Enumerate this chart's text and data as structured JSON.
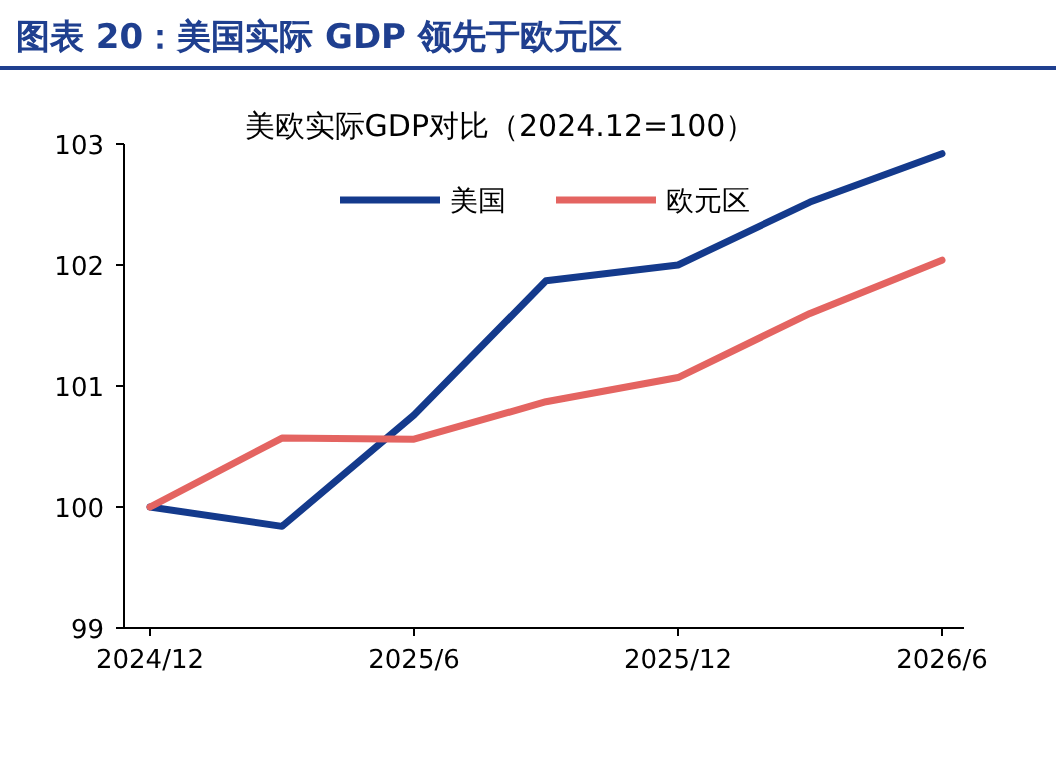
{
  "chart_data": {
    "type": "line",
    "title": "图表 20：美国实际 GDP 领先于欧元区",
    "subtitle": "美欧实际GDP对比（2024.12=100）",
    "categories": [
      "2024/12",
      null,
      "2025/6",
      null,
      "2025/12",
      null,
      "2026/6"
    ],
    "series": [
      {
        "name": "美国",
        "color": "#143a8c",
        "values": [
          100,
          99.84,
          100.76,
          101.87,
          102.0,
          102.52,
          102.92
        ]
      },
      {
        "name": "欧元区",
        "color": "#e46461",
        "values": [
          100,
          100.57,
          100.56,
          100.87,
          101.07,
          101.6,
          102.04
        ]
      }
    ],
    "ylim": [
      99,
      103
    ],
    "yticks": [
      99,
      100,
      101,
      102,
      103
    ],
    "grid": false,
    "legend": "top",
    "marker": "none",
    "line_style": "solid"
  }
}
